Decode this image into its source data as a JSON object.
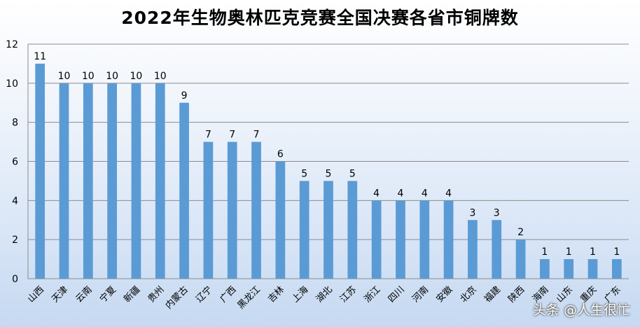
{
  "chart_data": {
    "type": "bar",
    "title": "2022年生物奥林匹克竞赛全国决赛各省市铜牌数",
    "categories": [
      "山西",
      "天津",
      "云南",
      "宁夏",
      "新疆",
      "贵州",
      "内蒙古",
      "辽宁",
      "广西",
      "黑龙江",
      "吉林",
      "上海",
      "湖北",
      "江苏",
      "浙江",
      "四川",
      "河南",
      "安徽",
      "北京",
      "福建",
      "陕西",
      "海南",
      "山东",
      "重庆",
      "广东"
    ],
    "values": [
      11,
      10,
      10,
      10,
      10,
      10,
      9,
      7,
      7,
      7,
      6,
      5,
      5,
      5,
      4,
      4,
      4,
      4,
      3,
      3,
      2,
      1,
      1,
      1,
      1
    ],
    "ylim": [
      0,
      12
    ],
    "yticks": [
      0,
      2,
      4,
      6,
      8,
      10,
      12
    ],
    "grid": true,
    "bar_color": "#5b9bd5",
    "data_labels": true
  },
  "watermark": "头条 @人生很忙"
}
